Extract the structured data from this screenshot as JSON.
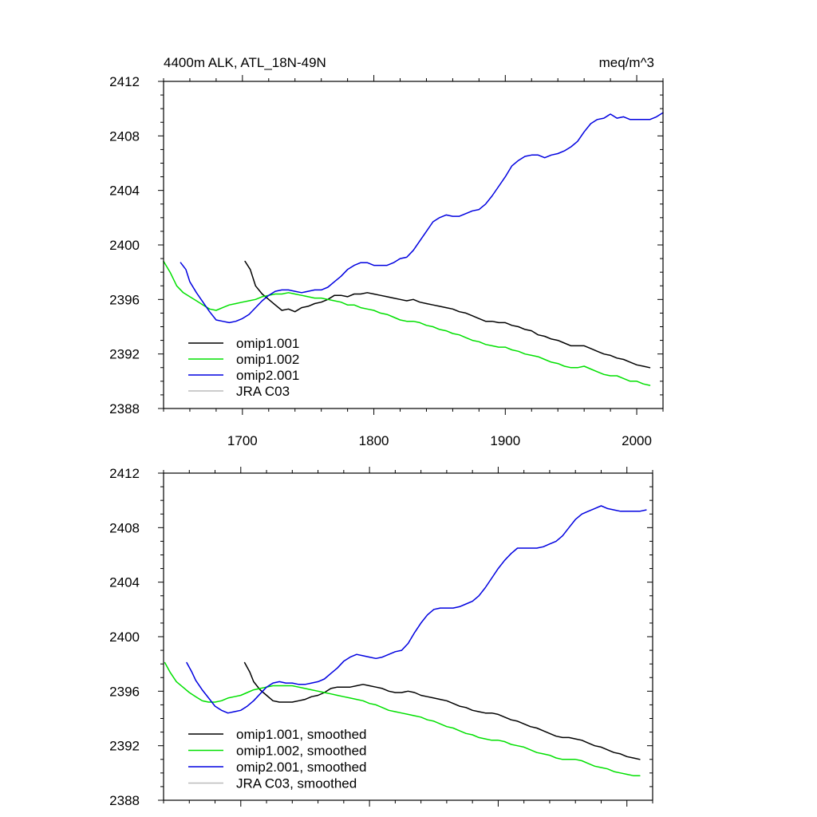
{
  "colors": {
    "omip1_001": "#000000",
    "omip1_002": "#00e000",
    "omip2_001": "#0000e0",
    "jra": "#bbbbbb"
  },
  "chart_data": [
    {
      "type": "line",
      "title": "4400m ALK, ATL_18N-49N",
      "units": "meq/m^3",
      "xlim": [
        1640,
        2020
      ],
      "ylim": [
        2388,
        2412
      ],
      "xticks": [
        1700,
        1800,
        1900,
        2000
      ],
      "yticks": [
        2388,
        2392,
        2396,
        2400,
        2404,
        2408,
        2412
      ],
      "xtick_labels": [
        "1700",
        "1800",
        "1900",
        "2000"
      ],
      "ytick_labels": [
        "2388",
        "2392",
        "2396",
        "2400",
        "2404",
        "2408",
        "2412"
      ],
      "legend": "bottom-left",
      "series": [
        {
          "name": "omip1.001",
          "color": "#000000",
          "x": [
            1702,
            1706,
            1710,
            1715,
            1720,
            1725,
            1730,
            1735,
            1740,
            1745,
            1750,
            1755,
            1760,
            1765,
            1770,
            1775,
            1780,
            1785,
            1790,
            1795,
            1800,
            1805,
            1810,
            1815,
            1820,
            1825,
            1830,
            1835,
            1840,
            1845,
            1850,
            1855,
            1860,
            1865,
            1870,
            1875,
            1880,
            1885,
            1890,
            1895,
            1900,
            1905,
            1910,
            1915,
            1920,
            1925,
            1930,
            1935,
            1940,
            1945,
            1950,
            1955,
            1960,
            1965,
            1970,
            1975,
            1980,
            1985,
            1990,
            1995,
            2000,
            2005,
            2010
          ],
          "y": [
            2398.8,
            2398.2,
            2397.0,
            2396.4,
            2396.0,
            2395.6,
            2395.2,
            2395.3,
            2395.1,
            2395.4,
            2395.5,
            2395.7,
            2395.8,
            2396.0,
            2396.3,
            2396.3,
            2396.2,
            2396.4,
            2396.4,
            2396.5,
            2396.4,
            2396.3,
            2396.2,
            2396.1,
            2396.0,
            2395.9,
            2396.0,
            2395.8,
            2395.7,
            2395.6,
            2395.5,
            2395.4,
            2395.3,
            2395.1,
            2395.0,
            2394.8,
            2394.6,
            2394.4,
            2394.4,
            2394.3,
            2394.3,
            2394.1,
            2394.0,
            2393.8,
            2393.7,
            2393.4,
            2393.3,
            2393.1,
            2393.0,
            2392.8,
            2392.6,
            2392.6,
            2392.6,
            2392.4,
            2392.2,
            2392.0,
            2391.9,
            2391.7,
            2391.6,
            2391.4,
            2391.2,
            2391.1,
            2391.0
          ]
        },
        {
          "name": "omip1.002",
          "color": "#00e000",
          "x": [
            1640,
            1645,
            1650,
            1655,
            1660,
            1665,
            1670,
            1675,
            1680,
            1685,
            1690,
            1695,
            1700,
            1705,
            1710,
            1715,
            1720,
            1725,
            1730,
            1735,
            1740,
            1745,
            1750,
            1755,
            1760,
            1765,
            1770,
            1775,
            1780,
            1785,
            1790,
            1795,
            1800,
            1805,
            1810,
            1815,
            1820,
            1825,
            1830,
            1835,
            1840,
            1845,
            1850,
            1855,
            1860,
            1865,
            1870,
            1875,
            1880,
            1885,
            1890,
            1895,
            1900,
            1905,
            1910,
            1915,
            1920,
            1925,
            1930,
            1935,
            1940,
            1945,
            1950,
            1955,
            1960,
            1965,
            1970,
            1975,
            1980,
            1985,
            1990,
            1995,
            2000,
            2005,
            2010
          ],
          "y": [
            2398.8,
            2398.0,
            2397.0,
            2396.5,
            2396.2,
            2395.9,
            2395.6,
            2395.3,
            2395.2,
            2395.4,
            2395.6,
            2395.7,
            2395.8,
            2395.9,
            2396.0,
            2396.2,
            2396.3,
            2396.4,
            2396.4,
            2396.5,
            2396.4,
            2396.3,
            2396.2,
            2396.1,
            2396.1,
            2396.0,
            2395.9,
            2395.8,
            2395.6,
            2395.6,
            2395.4,
            2395.3,
            2395.2,
            2395.0,
            2394.9,
            2394.7,
            2394.5,
            2394.4,
            2394.4,
            2394.3,
            2394.1,
            2394.0,
            2393.8,
            2393.7,
            2393.5,
            2393.4,
            2393.2,
            2393.0,
            2392.9,
            2392.7,
            2392.6,
            2392.5,
            2392.5,
            2392.3,
            2392.2,
            2392.0,
            2391.9,
            2391.8,
            2391.6,
            2391.4,
            2391.3,
            2391.1,
            2391.0,
            2391.0,
            2391.1,
            2390.9,
            2390.7,
            2390.5,
            2390.4,
            2390.4,
            2390.2,
            2390.0,
            2390.0,
            2389.8,
            2389.7
          ]
        },
        {
          "name": "omip2.001",
          "color": "#0000e0",
          "x": [
            1653,
            1657,
            1660,
            1665,
            1670,
            1675,
            1680,
            1685,
            1690,
            1695,
            1700,
            1705,
            1710,
            1715,
            1720,
            1725,
            1730,
            1735,
            1740,
            1745,
            1750,
            1755,
            1760,
            1765,
            1770,
            1775,
            1780,
            1785,
            1790,
            1795,
            1800,
            1805,
            1810,
            1815,
            1820,
            1825,
            1830,
            1835,
            1840,
            1845,
            1850,
            1855,
            1860,
            1865,
            1870,
            1875,
            1880,
            1885,
            1890,
            1895,
            1900,
            1905,
            1910,
            1915,
            1920,
            1925,
            1930,
            1935,
            1940,
            1945,
            1950,
            1955,
            1960,
            1965,
            1970,
            1975,
            1980,
            1985,
            1990,
            1995,
            2000,
            2005,
            2010,
            2015,
            2020
          ],
          "y": [
            2398.7,
            2398.2,
            2397.3,
            2396.5,
            2395.8,
            2395.1,
            2394.5,
            2394.4,
            2394.3,
            2394.4,
            2394.6,
            2394.9,
            2395.4,
            2395.9,
            2396.3,
            2396.6,
            2396.7,
            2396.7,
            2396.6,
            2396.5,
            2396.6,
            2396.7,
            2396.7,
            2396.9,
            2397.3,
            2397.7,
            2398.2,
            2398.5,
            2398.7,
            2398.7,
            2398.5,
            2398.5,
            2398.5,
            2398.7,
            2399.0,
            2399.1,
            2399.6,
            2400.3,
            2401.0,
            2401.7,
            2402.0,
            2402.2,
            2402.1,
            2402.1,
            2402.3,
            2402.5,
            2402.6,
            2403.0,
            2403.6,
            2404.3,
            2405.0,
            2405.8,
            2406.2,
            2406.5,
            2406.6,
            2406.6,
            2406.4,
            2406.6,
            2406.7,
            2406.9,
            2407.2,
            2407.6,
            2408.3,
            2408.9,
            2409.2,
            2409.3,
            2409.6,
            2409.3,
            2409.4,
            2409.2,
            2409.2,
            2409.2,
            2409.2,
            2409.4,
            2409.7
          ]
        },
        {
          "name": "JRA C03",
          "color": "#bbbbbb",
          "x": [],
          "y": []
        }
      ]
    },
    {
      "type": "line",
      "title": "",
      "xlim": [
        1640,
        2020
      ],
      "ylim": [
        2388,
        2412
      ],
      "xticks": [
        1700,
        1800,
        1900,
        2000
      ],
      "yticks": [
        2388,
        2392,
        2396,
        2400,
        2404,
        2408,
        2412
      ],
      "ytick_labels": [
        "2388",
        "2392",
        "2396",
        "2400",
        "2404",
        "2408",
        "2412"
      ],
      "legend": "bottom-left",
      "series": [
        {
          "name": "omip1.001, smoothed",
          "color": "#000000",
          "x": [
            1703,
            1707,
            1710,
            1715,
            1720,
            1725,
            1730,
            1735,
            1740,
            1745,
            1750,
            1755,
            1760,
            1765,
            1770,
            1775,
            1780,
            1785,
            1790,
            1795,
            1800,
            1805,
            1810,
            1815,
            1820,
            1825,
            1830,
            1835,
            1840,
            1845,
            1850,
            1855,
            1860,
            1865,
            1870,
            1875,
            1880,
            1885,
            1890,
            1895,
            1900,
            1905,
            1910,
            1915,
            1920,
            1925,
            1930,
            1935,
            1940,
            1945,
            1950,
            1955,
            1960,
            1965,
            1970,
            1975,
            1980,
            1985,
            1990,
            1995,
            2000,
            2005,
            2010
          ],
          "y": [
            2398.1,
            2397.4,
            2396.7,
            2396.1,
            2395.7,
            2395.3,
            2395.2,
            2395.2,
            2395.2,
            2395.3,
            2395.4,
            2395.6,
            2395.7,
            2395.9,
            2396.2,
            2396.3,
            2396.3,
            2396.3,
            2396.4,
            2396.5,
            2396.4,
            2396.3,
            2396.2,
            2396.0,
            2395.9,
            2395.9,
            2396.0,
            2395.9,
            2395.7,
            2395.6,
            2395.5,
            2395.4,
            2395.3,
            2395.1,
            2394.9,
            2394.8,
            2394.6,
            2394.5,
            2394.4,
            2394.4,
            2394.3,
            2394.1,
            2393.9,
            2393.8,
            2393.6,
            2393.4,
            2393.3,
            2393.1,
            2392.9,
            2392.7,
            2392.6,
            2392.6,
            2392.5,
            2392.4,
            2392.2,
            2392.0,
            2391.9,
            2391.7,
            2391.5,
            2391.4,
            2391.2,
            2391.1,
            2391.0
          ]
        },
        {
          "name": "omip1.002, smoothed",
          "color": "#00e000",
          "x": [
            1641,
            1645,
            1650,
            1655,
            1660,
            1665,
            1670,
            1675,
            1680,
            1685,
            1690,
            1695,
            1700,
            1705,
            1710,
            1715,
            1720,
            1725,
            1730,
            1735,
            1740,
            1745,
            1750,
            1755,
            1760,
            1765,
            1770,
            1775,
            1780,
            1785,
            1790,
            1795,
            1800,
            1805,
            1810,
            1815,
            1820,
            1825,
            1830,
            1835,
            1840,
            1845,
            1850,
            1855,
            1860,
            1865,
            1870,
            1875,
            1880,
            1885,
            1890,
            1895,
            1900,
            1905,
            1910,
            1915,
            1920,
            1925,
            1930,
            1935,
            1940,
            1945,
            1950,
            1955,
            1960,
            1965,
            1970,
            1975,
            1980,
            1985,
            1990,
            1995,
            2000,
            2005,
            2010
          ],
          "y": [
            2398.1,
            2397.4,
            2396.7,
            2396.3,
            2395.9,
            2395.6,
            2395.3,
            2395.2,
            2395.2,
            2395.3,
            2395.5,
            2395.6,
            2395.7,
            2395.9,
            2396.1,
            2396.2,
            2396.3,
            2396.4,
            2396.4,
            2396.4,
            2396.4,
            2396.3,
            2396.2,
            2396.1,
            2396.0,
            2395.9,
            2395.8,
            2395.7,
            2395.6,
            2395.5,
            2395.4,
            2395.3,
            2395.1,
            2395.0,
            2394.8,
            2394.6,
            2394.5,
            2394.4,
            2394.3,
            2394.2,
            2394.1,
            2393.9,
            2393.8,
            2393.6,
            2393.4,
            2393.3,
            2393.1,
            2392.9,
            2392.8,
            2392.6,
            2392.5,
            2392.4,
            2392.4,
            2392.3,
            2392.1,
            2392.0,
            2391.9,
            2391.7,
            2391.5,
            2391.4,
            2391.3,
            2391.1,
            2391.0,
            2391.0,
            2391.0,
            2390.9,
            2390.7,
            2390.5,
            2390.4,
            2390.3,
            2390.1,
            2390.0,
            2389.9,
            2389.8,
            2389.8
          ]
        },
        {
          "name": "omip2.001, smoothed",
          "color": "#0000e0",
          "x": [
            1658,
            1662,
            1665,
            1670,
            1675,
            1680,
            1685,
            1690,
            1695,
            1700,
            1705,
            1710,
            1715,
            1720,
            1725,
            1730,
            1735,
            1740,
            1745,
            1750,
            1755,
            1760,
            1765,
            1770,
            1775,
            1780,
            1785,
            1790,
            1795,
            1800,
            1805,
            1810,
            1815,
            1820,
            1825,
            1830,
            1835,
            1840,
            1845,
            1850,
            1855,
            1860,
            1865,
            1870,
            1875,
            1880,
            1885,
            1890,
            1895,
            1900,
            1905,
            1910,
            1915,
            1920,
            1925,
            1930,
            1935,
            1940,
            1945,
            1950,
            1955,
            1960,
            1965,
            1970,
            1975,
            1980,
            1985,
            1990,
            1995,
            2000,
            2005,
            2010,
            2015
          ],
          "y": [
            2398.1,
            2397.4,
            2396.8,
            2396.1,
            2395.5,
            2394.9,
            2394.6,
            2394.4,
            2394.5,
            2394.6,
            2394.9,
            2395.3,
            2395.8,
            2396.3,
            2396.6,
            2396.7,
            2396.6,
            2396.6,
            2396.5,
            2396.5,
            2396.6,
            2396.7,
            2396.9,
            2397.3,
            2397.7,
            2398.2,
            2398.5,
            2398.7,
            2398.6,
            2398.5,
            2398.4,
            2398.5,
            2398.7,
            2398.9,
            2399.0,
            2399.5,
            2400.3,
            2401.0,
            2401.6,
            2402.0,
            2402.1,
            2402.1,
            2402.1,
            2402.2,
            2402.4,
            2402.6,
            2403.0,
            2403.6,
            2404.3,
            2405.0,
            2405.6,
            2406.1,
            2406.5,
            2406.5,
            2406.5,
            2406.5,
            2406.6,
            2406.8,
            2407.0,
            2407.4,
            2408.0,
            2408.6,
            2409.0,
            2409.2,
            2409.4,
            2409.6,
            2409.4,
            2409.3,
            2409.2,
            2409.2,
            2409.2,
            2409.2,
            2409.3
          ]
        },
        {
          "name": "JRA C03, smoothed",
          "color": "#bbbbbb",
          "x": [],
          "y": []
        }
      ]
    }
  ]
}
